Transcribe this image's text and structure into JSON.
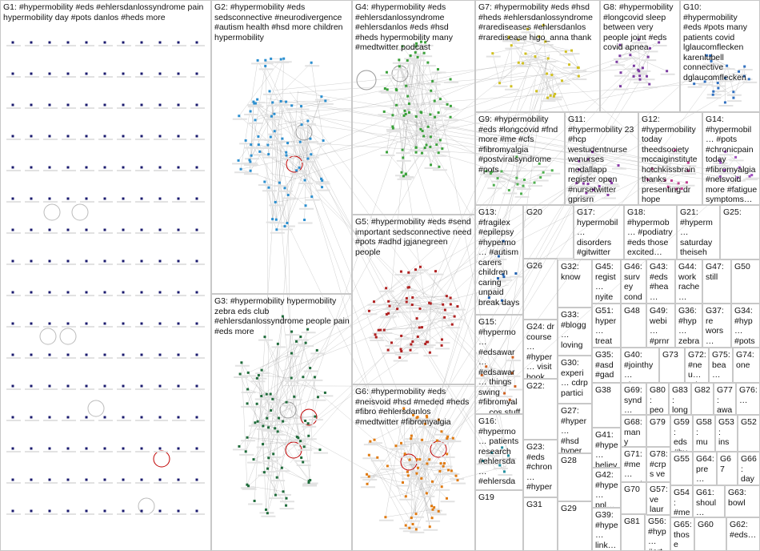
{
  "groups": {
    "G1": "G1: #hypermobility #eds #ehlersdanlossyndrome pain hypermobility day #pots danlos #heds more",
    "G2": "G2: #hypermobility #eds sedsconnective #neurodivergence #autism health #hsd more children hypermobility",
    "G3": "G3: #hypermobility hypermobility zebra eds club #ehlersdanlossyndrome people pain #eds more",
    "G4": "G4: #hypermobility #eds #ehlersdanlossyndrome #ehlersdanlos #eds #hsd #heds hypermobility many #medtwitter podcast",
    "G5": "G5: #hypermobility #eds #send important sedsconnective need #pots #adhd jgjanegreen people",
    "G6": "G6: #hypermobility #eds #neisvoid #hsd #meded #heds #fibro #ehlersdanlos #medtwitter #fibromyalgia",
    "G7": "G7: #hypermobility #eds #hsd #heds #ehlersdanlossyndrome #rarediseases #ehlersdanlos #raredisease higo_anna thank",
    "G8": "G8: #hypermobility #longcovid sleep between very people joint #eds covid apnea",
    "G9": "G9: #hypermobility #eds #longcovid #fnd more #me #cfs #fibromyalgia #postviralsyndrome #pots",
    "G10": "G10: #hypermobility #eds #pots many patients covid lglaucomflecken karenlubell connective dglaucomflecken",
    "G11": "G11: #hypermobility 23 #hcp westudentnurse wenurses medallapp register open #nursetwitter gprisrn",
    "G12": "G12: #hypermobility today theedsociety mccaiginstitute hotchkissbrain thanks presenting dr hope dcnsneuro",
    "G13": "G13: #fragilex #epilepsy #hypermo… #autism carers children caring unpaid break days",
    "G14": "G14: #hypermobil… #pots #chronicpain today #fibromyalgia #neisvoid more #fatigue symptoms…",
    "G15": "G15: #hypermo… #edsawar… #edsawar… things swing #fibromyal… cos stuff resistance…",
    "G16": "G16: #hypermo… patients research #ehlersda… #ehlersda… survey…",
    "G17": "G17: hypermobil… disorders #gitwitter #hypermob…",
    "G18": "G18: #hypermob… #podiatry #eds those excited…",
    "G19": "G19",
    "G20": "G20",
    "G21": "G21: #hyperm… saturday theiseh #voice join",
    "G22": "G22:",
    "G23": "G23: #eds #chron… #hyper…",
    "G24": "G24: dr course… #hyper… visit book…",
    "G25": "G25:",
    "G26": "G26",
    "G27": "G27: #hyper… #hsd hyper…",
    "G28": "G28",
    "G29": "G29",
    "G30": "G30: experi… cdrp partici…",
    "G31": "G31",
    "G32": "G32: know",
    "G33": "G33: #blogg… loving… #hms…",
    "G34": "G34: #hyp… #pots googl…",
    "G35": "G35: #asd #gad…",
    "G36": "G36: #hyp… zebra visit…",
    "G37": "G37: re wors… condi…",
    "G38": "G38",
    "G39": "G39: #hype… link…",
    "G40": "G40: #jointhy… #hyper…",
    "G41": "G41: #hype… believ…",
    "G42": "G42: #hype… ppl…",
    "G43": "G43: #eds #hea… patie…",
    "G44": "G44: work rache…",
    "G45": "G45: regist… nyite… symp…",
    "G46": "G46: survey condi… resea…",
    "G47": "G47: still",
    "G48": "G48",
    "G49": "G49: webi… #prnr… joint…",
    "G50": "G50",
    "G51": "G51: hyper… treat… mana…",
    "G52": "G52",
    "G53": "G53: ins…",
    "G54": "G54: #me…",
    "G55": "G55",
    "G56": "G56: #hyp… #art…",
    "G57": "G57: ve laur…",
    "G58": "G58: mu… tun…",
    "G59": "G59: eds #hy…",
    "G60": "G60",
    "G61": "G61: shoul…",
    "G62": "G62: #eds…",
    "G63": "G63: bowl",
    "G64": "G64: pre…",
    "G65": "G65: those",
    "G66": "G66: day",
    "G67": "G67",
    "G68": "G68: many",
    "G69": "G69: synd…",
    "G70": "G70",
    "G71": "G71: #me… overl…",
    "G72": "G72: #neu… nd…",
    "G73": "G73",
    "G74": "G74: one",
    "G75": "G75: bea…",
    "G76": "G76: …",
    "G77": "G77: awa…",
    "G78": "G78: #crps ve",
    "G79": "G79",
    "G80": "G80: peo…",
    "G81": "G81",
    "G82": "G82",
    "G83": "G83: long #hy…"
  },
  "colors": {
    "G1": "#1a1a6e",
    "G2": "#2b8fd0",
    "G3": "#1e6b3a",
    "G4": "#3aa13a",
    "G5": "#b02020",
    "G6": "#e07a10",
    "G7": "#d0c020",
    "G8": "#7a3aa0",
    "G9": "#50b050",
    "G10": "#3070c0",
    "G11": "#8a3aa8",
    "G12": "#c04090",
    "G13": "#2060b0",
    "G14": "#a050c0",
    "G15": "#d06020",
    "G16": "#2090a0",
    "edge": "#9a9a9a",
    "loop": "#c00000"
  }
}
